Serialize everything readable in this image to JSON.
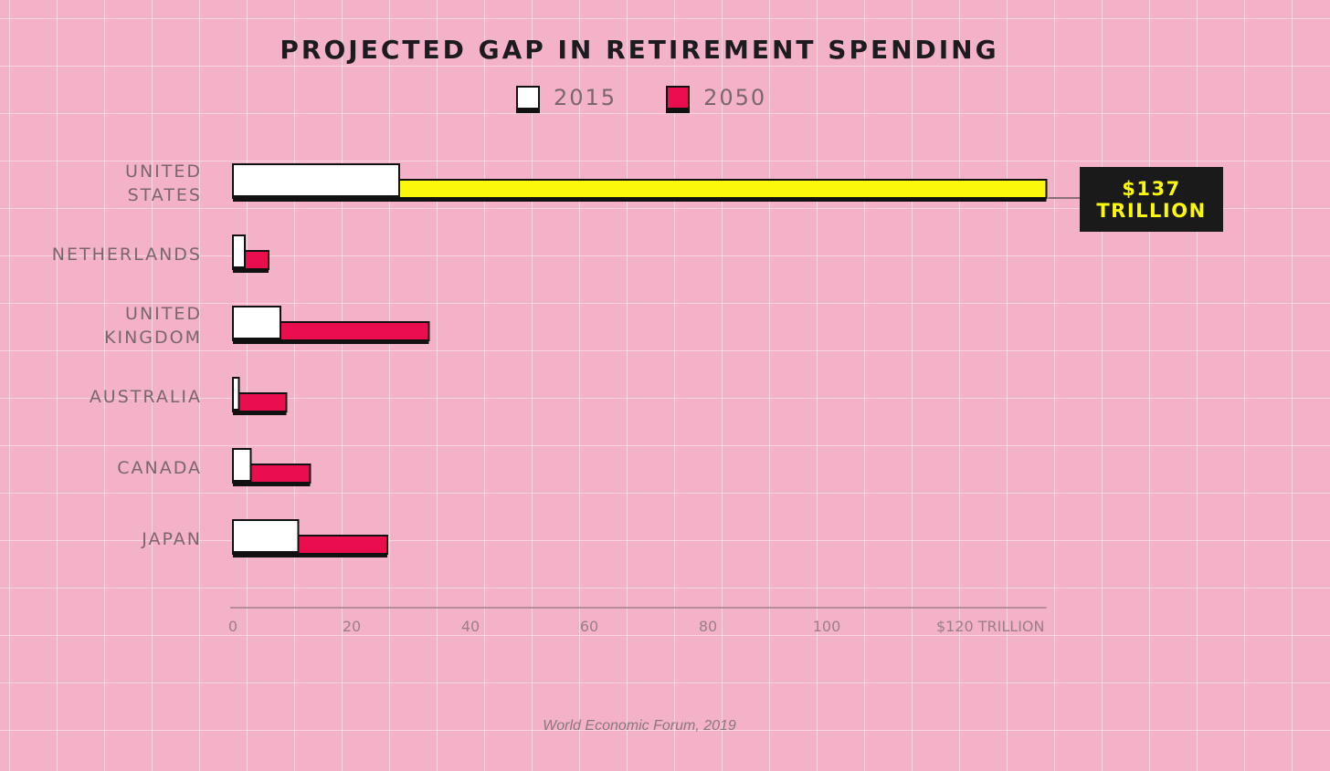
{
  "chart_data": {
    "type": "bar",
    "orientation": "horizontal",
    "title": "PROJECTED GAP IN RETIREMENT SPENDING",
    "categories": [
      "UNITED STATES",
      "NETHERLANDS",
      "UNITED KINGDOM",
      "AUSTRALIA",
      "CANADA",
      "JAPAN"
    ],
    "category_lines": [
      [
        "UNITED",
        "STATES"
      ],
      [
        "NETHERLANDS"
      ],
      [
        "UNITED",
        "KINGDOM"
      ],
      [
        "AUSTRALIA"
      ],
      [
        "CANADA"
      ],
      [
        "JAPAN"
      ]
    ],
    "series": [
      {
        "name": "2015",
        "values": [
          28,
          2,
          8,
          1,
          3,
          11
        ]
      },
      {
        "name": "2050",
        "values": [
          137,
          6,
          33,
          9,
          13,
          26
        ]
      }
    ],
    "xlim": [
      0,
      137
    ],
    "x_ticks": [
      0,
      20,
      40,
      60,
      80,
      100,
      120
    ],
    "x_tick_labels": [
      "0",
      "20",
      "40",
      "60",
      "80",
      "100",
      "$120 TRILLION"
    ],
    "annotation": {
      "lines": [
        "$137",
        "TRILLION"
      ],
      "category": "UNITED STATES"
    },
    "source": "World Economic Forum, 2019"
  },
  "colors": {
    "background": "#f3b2c7",
    "series_2015": "#ffffff",
    "series_2050": "#ea0e4f",
    "highlight": "#fbf80c",
    "outline": "#111111",
    "axis": "#b98c9c",
    "label": "#7b6670"
  }
}
